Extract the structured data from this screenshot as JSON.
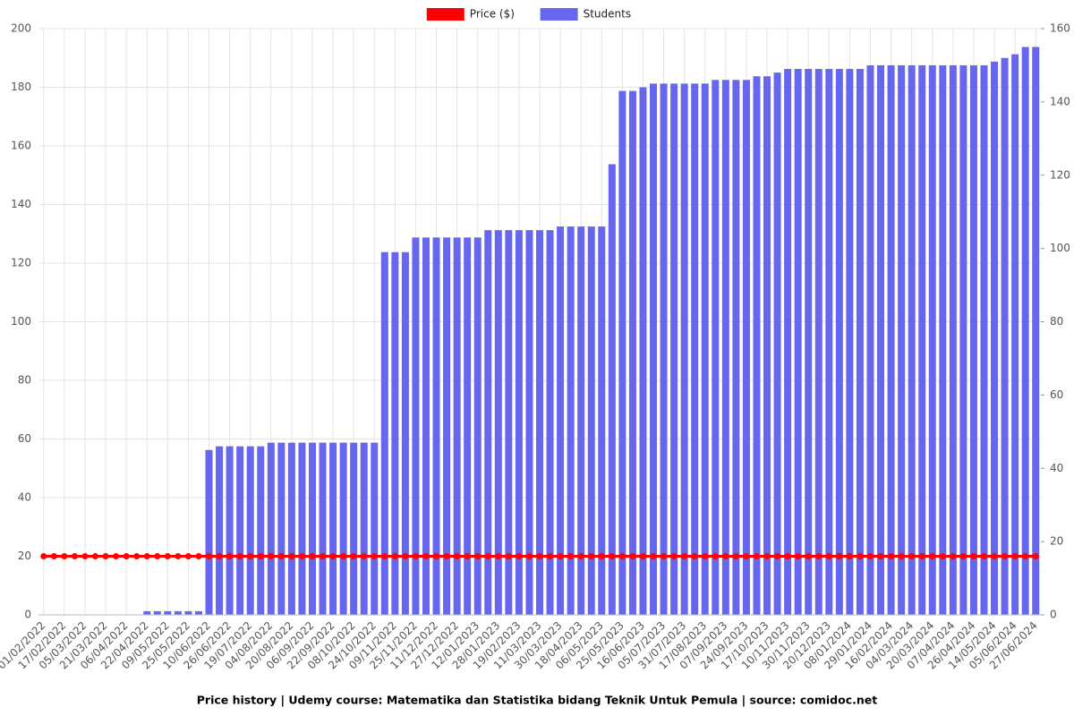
{
  "chart_data": {
    "type": "bar",
    "title": "Price history | Udemy course: Matematika dan Statistika bidang Teknik Untuk Pemula | source: comidoc.net",
    "categories": [
      "01/02/2022",
      null,
      "17/02/2022",
      null,
      "05/03/2022",
      null,
      "21/03/2022",
      null,
      "06/04/2022",
      null,
      "22/04/2022",
      null,
      "09/05/2022",
      null,
      "25/05/2022",
      null,
      "10/06/2022",
      null,
      "26/06/2022",
      null,
      "19/07/2022",
      null,
      "04/08/2022",
      null,
      "20/08/2022",
      null,
      "06/09/2022",
      null,
      "22/09/2022",
      null,
      "08/10/2022",
      null,
      "24/10/2022",
      null,
      "09/11/2022",
      null,
      "25/11/2022",
      null,
      "11/12/2022",
      null,
      "27/12/2022",
      null,
      "12/01/2023",
      null,
      "28/01/2023",
      null,
      "19/02/2023",
      null,
      "11/03/2023",
      null,
      "30/03/2023",
      null,
      "18/04/2023",
      null,
      "06/05/2023",
      null,
      "25/05/2023",
      null,
      "16/06/2023",
      null,
      "05/07/2023",
      null,
      "31/07/2023",
      null,
      "17/08/2023",
      null,
      "07/09/2023",
      null,
      "24/09/2023",
      null,
      "17/10/2023",
      null,
      "10/11/2023",
      null,
      "30/11/2023",
      null,
      "20/12/2023",
      null,
      "08/01/2024",
      null,
      "29/01/2024",
      null,
      "16/02/2024",
      null,
      "04/03/2024",
      null,
      "20/03/2024",
      null,
      "07/04/2024",
      null,
      "26/04/2024",
      null,
      "14/05/2024",
      null,
      "05/06/2024",
      null,
      "27/06/2024"
    ],
    "series": [
      {
        "name": "Price ($)",
        "type": "line",
        "axis": "y",
        "color": "#ff0000",
        "values": [
          20,
          20,
          20,
          20,
          20,
          20,
          20,
          20,
          20,
          20,
          20,
          20,
          20,
          20,
          20,
          20,
          20,
          20,
          20,
          20,
          20,
          20,
          20,
          20,
          20,
          20,
          20,
          20,
          20,
          20,
          20,
          20,
          20,
          20,
          20,
          20,
          20,
          20,
          20,
          20,
          20,
          20,
          20,
          20,
          20,
          20,
          20,
          20,
          20,
          20,
          20,
          20,
          20,
          20,
          20,
          20,
          20,
          20,
          20,
          20,
          20,
          20,
          20,
          20,
          20,
          20,
          20,
          20,
          20,
          20,
          20,
          20,
          20,
          20,
          20,
          20,
          20,
          20,
          20,
          20,
          20,
          20,
          20,
          20,
          20,
          20,
          20,
          20,
          20,
          20,
          20,
          20,
          20,
          20,
          20,
          20,
          20
        ]
      },
      {
        "name": "Students",
        "type": "bar",
        "axis": "y2",
        "color": "#6666ee",
        "values": [
          0,
          0,
          0,
          0,
          0,
          0,
          0,
          0,
          0,
          0,
          1,
          1,
          1,
          1,
          1,
          1,
          45,
          46,
          46,
          46,
          46,
          46,
          47,
          47,
          47,
          47,
          47,
          47,
          47,
          47,
          47,
          47,
          47,
          99,
          99,
          99,
          103,
          103,
          103,
          103,
          103,
          103,
          103,
          105,
          105,
          105,
          105,
          105,
          105,
          105,
          106,
          106,
          106,
          106,
          106,
          123,
          143,
          143,
          144,
          145,
          145,
          145,
          145,
          145,
          145,
          146,
          146,
          146,
          146,
          147,
          147,
          148,
          149,
          149,
          149,
          149,
          149,
          149,
          149,
          149,
          150,
          150,
          150,
          150,
          150,
          150,
          150,
          150,
          150,
          150,
          150,
          150,
          151,
          152,
          153,
          155,
          155
        ]
      }
    ],
    "ylim": [
      0,
      200
    ],
    "yticks": [
      0,
      20,
      40,
      60,
      80,
      100,
      120,
      140,
      160,
      180,
      200
    ],
    "y2lim": [
      0,
      160
    ],
    "y2ticks": [
      0,
      20,
      40,
      60,
      80,
      100,
      120,
      140,
      160
    ],
    "grid": true
  }
}
